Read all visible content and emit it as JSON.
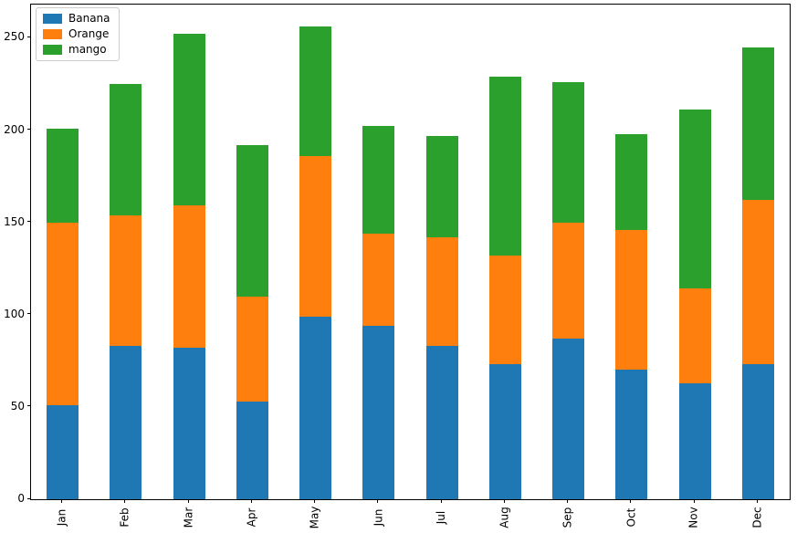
{
  "chart_data": {
    "type": "bar",
    "stacked": true,
    "title": "",
    "xlabel": "",
    "ylabel": "",
    "grid": false,
    "legend_position": "upper left",
    "categories": [
      "Jan",
      "Feb",
      "Mar",
      "Apr",
      "May",
      "Jun",
      "Jul",
      "Aug",
      "Sep",
      "Oct",
      "Nov",
      "Dec"
    ],
    "series": [
      {
        "name": "Banana",
        "color": "#1f77b4",
        "values": [
          51,
          83,
          82,
          53,
          99,
          94,
          83,
          73,
          87,
          70,
          63,
          73
        ]
      },
      {
        "name": "Orange",
        "color": "#ff7f0e",
        "values": [
          99,
          71,
          77,
          57,
          87,
          50,
          59,
          59,
          63,
          76,
          51,
          89
        ]
      },
      {
        "name": "mango",
        "color": "#2ca02c",
        "values": [
          51,
          71,
          93,
          82,
          70,
          58,
          55,
          97,
          76,
          52,
          97,
          83
        ]
      }
    ],
    "stack_totals": [
      201,
      225,
      252,
      192,
      256,
      202,
      197,
      229,
      226,
      198,
      211,
      245
    ],
    "yticks": [
      0,
      50,
      100,
      150,
      200,
      250
    ],
    "ylim": [
      0,
      268
    ],
    "colors": {
      "spine": "#000000",
      "background": "#ffffff",
      "legend_border": "#cccccc"
    }
  }
}
